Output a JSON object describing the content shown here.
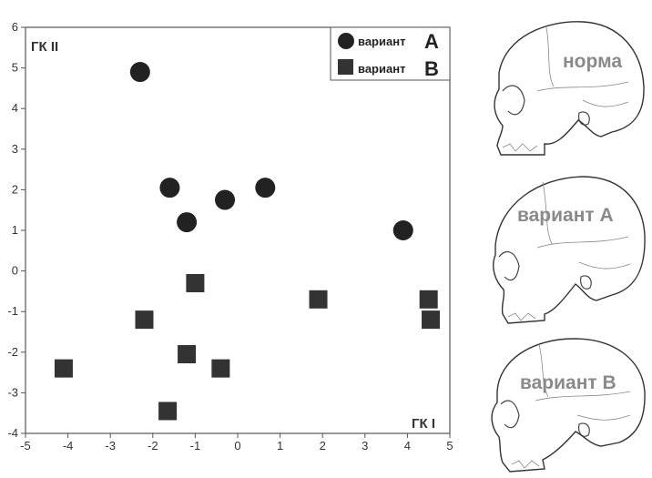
{
  "chart_data": {
    "type": "scatter",
    "xlim": [
      -5,
      5
    ],
    "ylim": [
      -4,
      6
    ],
    "x_ticks": [
      -5,
      -4,
      -3,
      -2,
      -1,
      0,
      1,
      2,
      3,
      4,
      5
    ],
    "y_ticks": [
      -4,
      -3,
      -2,
      -1,
      0,
      1,
      2,
      3,
      4,
      5,
      6
    ],
    "xlabel": "ГК I",
    "ylabel": "ГК II",
    "legend_position": "top-right",
    "grid": false,
    "series": [
      {
        "name": "вариант A",
        "word": "вариант",
        "letter": "A",
        "marker": "circle",
        "color": "#222222",
        "points": [
          {
            "x": -2.3,
            "y": 4.9
          },
          {
            "x": -1.6,
            "y": 2.05
          },
          {
            "x": -0.3,
            "y": 1.75
          },
          {
            "x": 0.65,
            "y": 2.05
          },
          {
            "x": -1.2,
            "y": 1.2
          },
          {
            "x": 3.9,
            "y": 1.0
          }
        ]
      },
      {
        "name": "вариант B",
        "word": "вариант",
        "letter": "B",
        "marker": "square",
        "color": "#333333",
        "points": [
          {
            "x": -1.0,
            "y": -0.3
          },
          {
            "x": -2.2,
            "y": -1.2
          },
          {
            "x": 1.9,
            "y": -0.7
          },
          {
            "x": 4.5,
            "y": -0.7
          },
          {
            "x": 4.55,
            "y": -1.2
          },
          {
            "x": -4.1,
            "y": -2.4
          },
          {
            "x": -1.2,
            "y": -2.05
          },
          {
            "x": -0.4,
            "y": -2.4
          },
          {
            "x": -1.65,
            "y": -3.45
          }
        ]
      }
    ]
  },
  "skulls": [
    {
      "label": "норма"
    },
    {
      "label": "вариант А"
    },
    {
      "label": "вариант В"
    }
  ]
}
